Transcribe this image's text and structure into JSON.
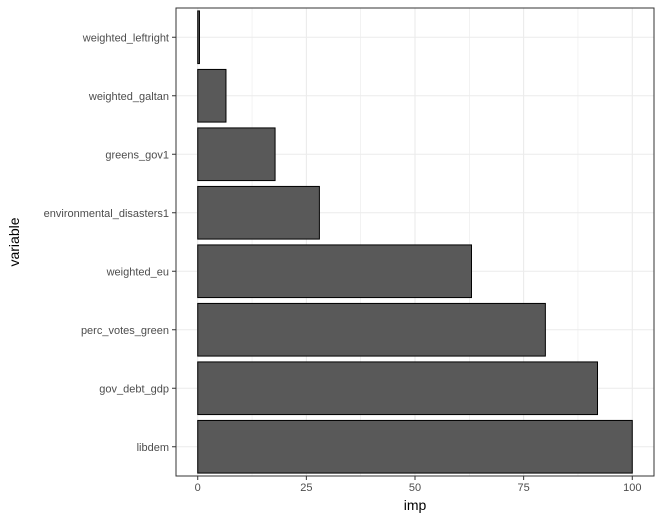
{
  "chart_data": {
    "type": "bar",
    "orientation": "horizontal",
    "categories": [
      "weighted_leftright",
      "weighted_galtan",
      "greens_gov1",
      "environmental_disasters1",
      "weighted_eu",
      "perc_votes_green",
      "gov_debt_gdp",
      "libdem"
    ],
    "values": [
      0.4,
      6.5,
      17.8,
      28.0,
      63.0,
      80.0,
      92.0,
      100.0
    ],
    "xlabel": "imp",
    "ylabel": "variable",
    "xlim": [
      -5,
      105
    ],
    "xticks": [
      "0",
      "25",
      "50",
      "75",
      "100"
    ],
    "grid": true,
    "bar_fill": "#595959",
    "bar_stroke": "#000000",
    "grid_color": "#ebebeb"
  }
}
